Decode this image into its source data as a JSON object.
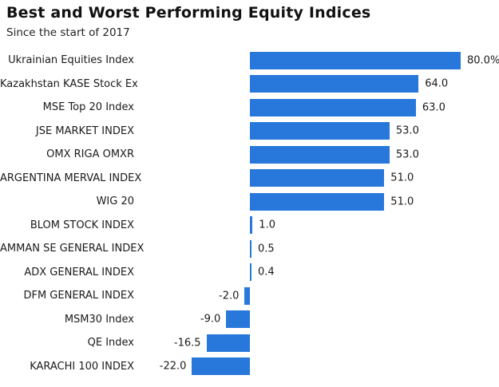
{
  "header": {
    "title": "Best and Worst Performing Equity Indices",
    "subtitle": "Since the start of 2017"
  },
  "colors": {
    "bar": "#2878dc",
    "title_text": "#111111",
    "label_text": "#1a1a1a",
    "background": "#ffffff"
  },
  "chart_data": {
    "type": "bar",
    "orientation": "horizontal",
    "title": "Best and Worst Performing Equity Indices",
    "subtitle": "Since the start of 2017",
    "xlabel": "",
    "ylabel": "",
    "xlim": [
      -25,
      95
    ],
    "grid": false,
    "legend": false,
    "value_unit": "percent",
    "categories": [
      "Ukrainian Equities Index",
      "Kazakhstan KASE Stock Ex",
      "MSE Top 20 Index",
      "JSE MARKET INDEX",
      "OMX RIGA OMXR",
      "ARGENTINA MERVAL INDEX",
      "WIG 20",
      "BLOM STOCK INDEX",
      "AMMAN SE GENERAL INDEX",
      "ADX GENERAL INDEX",
      "DFM GENERAL INDEX",
      "MSM30 Index",
      "QE Index",
      "KARACHI 100 INDEX"
    ],
    "values": [
      80.0,
      64.0,
      63.0,
      53.0,
      53.0,
      51.0,
      51.0,
      1.0,
      0.5,
      0.4,
      -2.0,
      -9.0,
      -16.5,
      -22.0
    ],
    "value_labels": [
      "80.0%",
      "64.0",
      "63.0",
      "53.0",
      "53.0",
      "51.0",
      "51.0",
      "1.0",
      "0.5",
      "0.4",
      "-2.0",
      "-9.0",
      "-16.5",
      "-22.0"
    ]
  }
}
